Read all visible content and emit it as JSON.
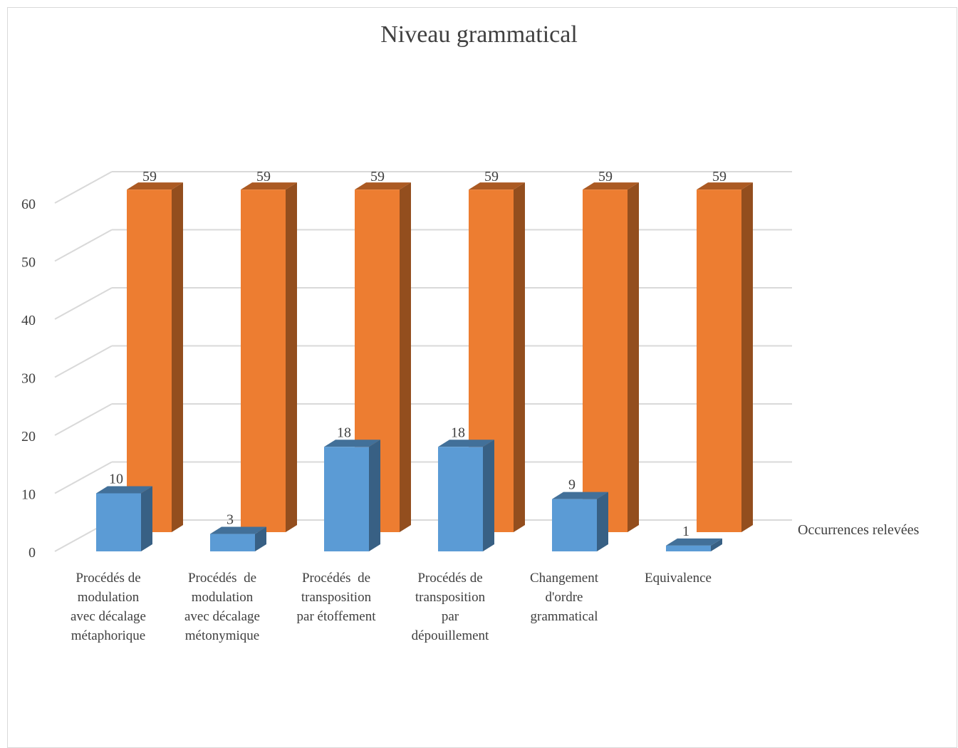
{
  "chart_data": {
    "type": "bar",
    "title": "Niveau grammatical",
    "categories": [
      [
        "Procédés de",
        "modulation",
        "avec décalage",
        "métaphorique"
      ],
      [
        "Procédés  de",
        "modulation",
        "avec décalage",
        "métonymique"
      ],
      [
        "Procédés  de",
        "transposition",
        "par étoffement"
      ],
      [
        "Procédés de",
        "transposition",
        "par",
        "dépouillement"
      ],
      [
        "Changement",
        "d'ordre",
        "grammatical"
      ],
      [
        "Equivalence"
      ]
    ],
    "series": [
      {
        "name": "Occurrences relevées",
        "values": [
          10,
          3,
          18,
          18,
          9,
          1
        ],
        "color": "#5b9bd5"
      },
      {
        "name": "",
        "values": [
          59,
          59,
          59,
          59,
          59,
          59
        ],
        "color": "#ed7d31"
      }
    ],
    "yticks": [
      0,
      10,
      20,
      30,
      40,
      50,
      60
    ],
    "ylim": [
      0,
      65
    ],
    "legend": "right",
    "grid": true,
    "style": "3d-clustered-bar"
  }
}
